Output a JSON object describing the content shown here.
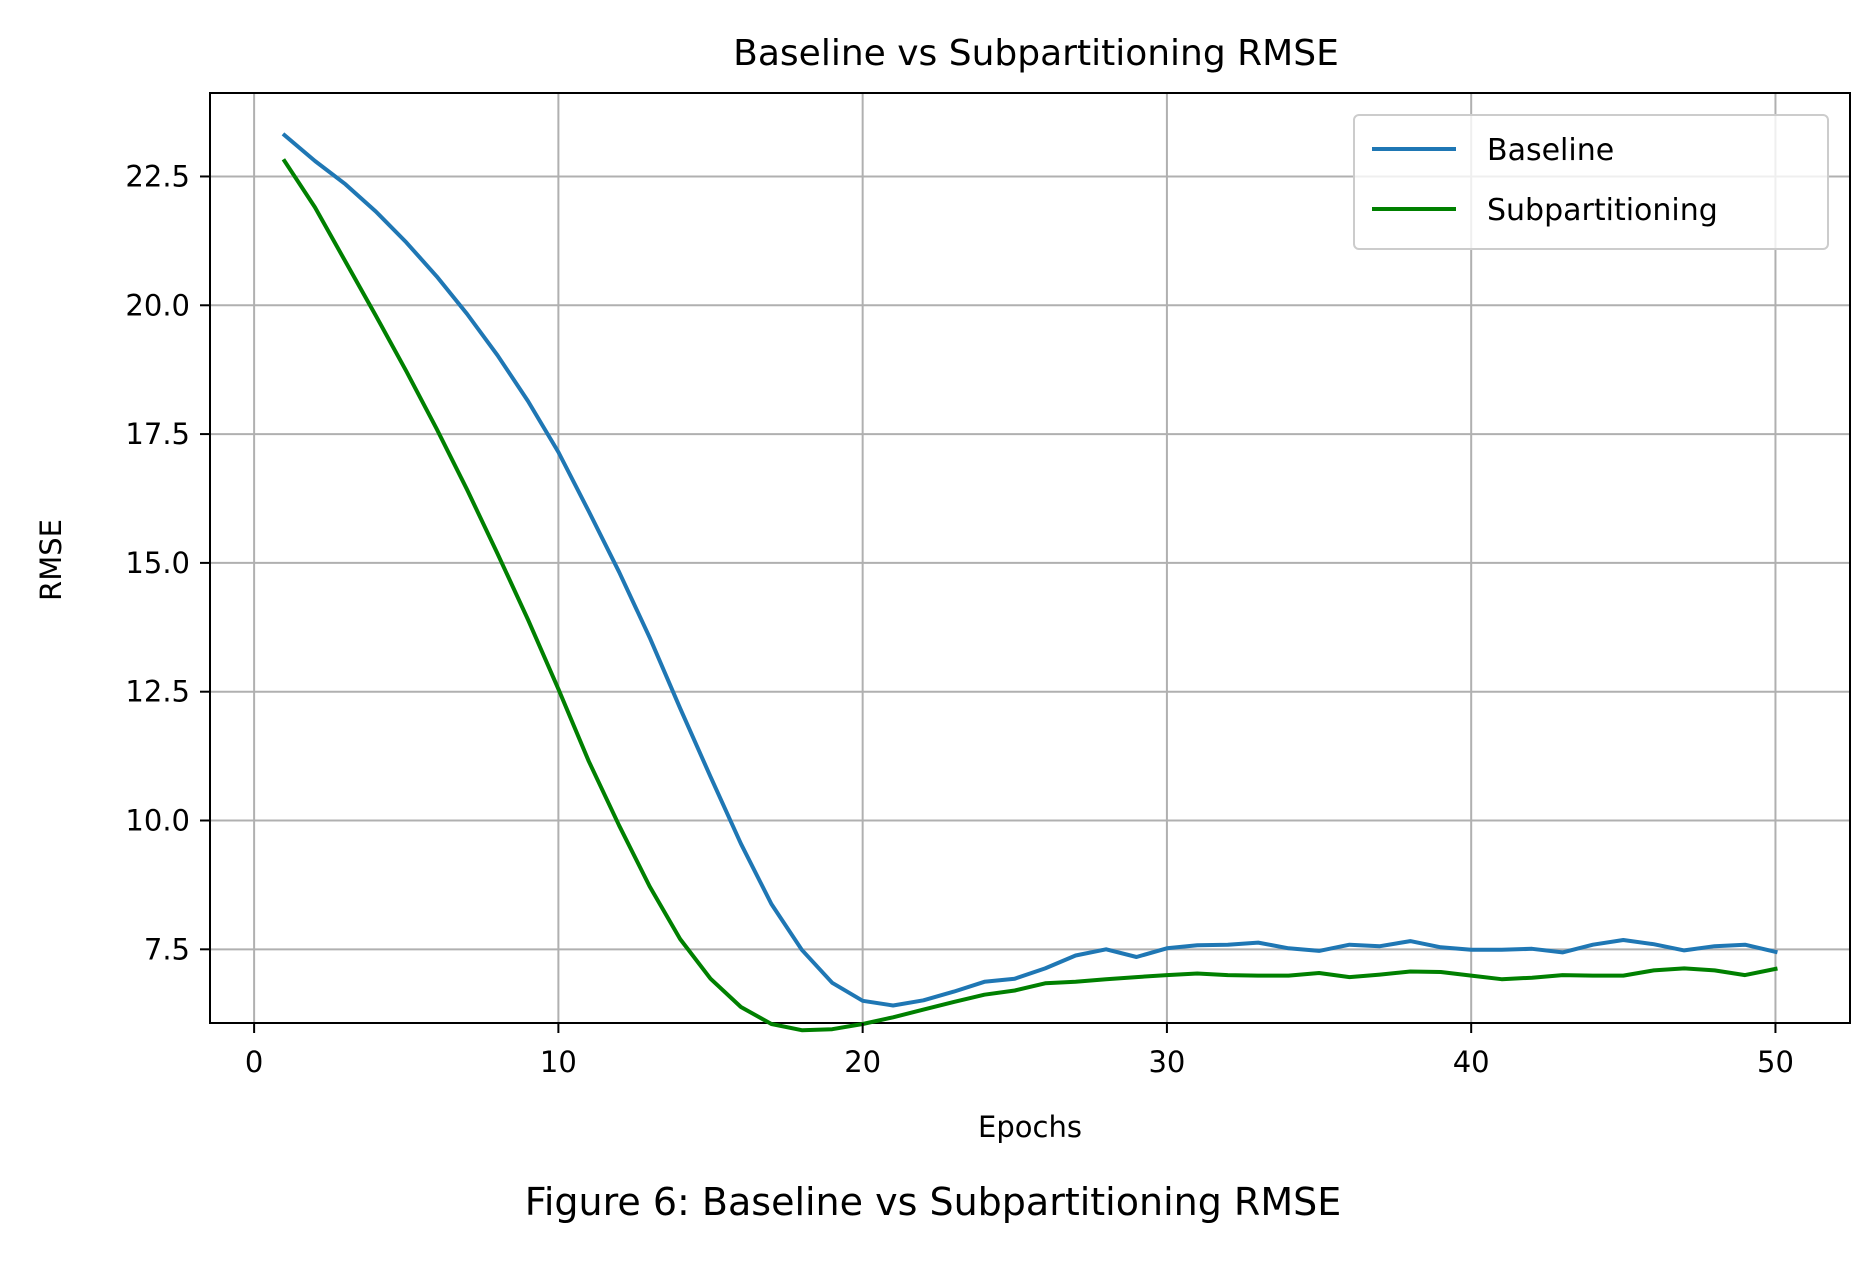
{
  "caption": "Figure 6: Baseline vs Subpartitioning RMSE",
  "chart_data": {
    "type": "line",
    "title": "Baseline vs Subpartitioning RMSE",
    "xlabel": "Epochs",
    "ylabel": "RMSE",
    "xlim": [
      -1.45,
      52.45
    ],
    "ylim": [
      6.07,
      24.12
    ],
    "xticks": [
      0,
      10,
      20,
      30,
      40,
      50
    ],
    "xtick_labels": [
      "0",
      "10",
      "20",
      "30",
      "40",
      "50"
    ],
    "yticks": [
      7.5,
      10.0,
      12.5,
      15.0,
      17.5,
      20.0,
      22.5
    ],
    "ytick_labels": [
      "7.5",
      "10.0",
      "12.5",
      "15.0",
      "17.5",
      "20.0",
      "22.5"
    ],
    "grid": true,
    "legend_position": "upper right",
    "x": [
      1,
      2,
      3,
      4,
      5,
      6,
      7,
      8,
      9,
      10,
      11,
      12,
      13,
      14,
      15,
      16,
      17,
      18,
      19,
      20,
      21,
      22,
      23,
      24,
      25,
      26,
      27,
      28,
      29,
      30,
      31,
      32,
      33,
      34,
      35,
      36,
      37,
      38,
      39,
      40,
      41,
      42,
      43,
      44,
      45,
      46,
      47,
      48,
      49,
      50
    ],
    "series": [
      {
        "name": "Baseline",
        "color": "#1f77b4",
        "values": [
          23.3,
          22.8,
          22.35,
          21.82,
          21.22,
          20.56,
          19.83,
          19.03,
          18.14,
          17.15,
          16.0,
          14.82,
          13.55,
          12.18,
          10.85,
          9.55,
          8.38,
          7.49,
          6.85,
          6.5,
          6.41,
          6.51,
          6.68,
          6.87,
          6.93,
          7.13,
          7.38,
          7.5,
          7.35,
          7.52,
          7.58,
          7.59,
          7.63,
          7.52,
          7.47,
          7.59,
          7.56,
          7.66,
          7.54,
          7.49,
          7.49,
          7.51,
          7.44,
          7.59,
          7.68,
          7.6,
          7.48,
          7.56,
          7.59,
          7.45
        ]
      },
      {
        "name": "Subpartitioning",
        "color": "#008000",
        "values": [
          22.8,
          21.9,
          20.85,
          19.8,
          18.72,
          17.6,
          16.42,
          15.18,
          13.9,
          12.55,
          11.15,
          9.9,
          8.72,
          7.7,
          6.93,
          6.38,
          6.05,
          5.93,
          5.95,
          6.05,
          6.18,
          6.33,
          6.48,
          6.62,
          6.7,
          6.84,
          6.87,
          6.92,
          6.96,
          7.0,
          7.03,
          7.0,
          6.99,
          6.99,
          7.04,
          6.96,
          7.01,
          7.07,
          7.06,
          6.99,
          6.92,
          6.95,
          7.0,
          6.99,
          6.99,
          7.09,
          7.13,
          7.09,
          7.0,
          7.12
        ]
      }
    ]
  }
}
